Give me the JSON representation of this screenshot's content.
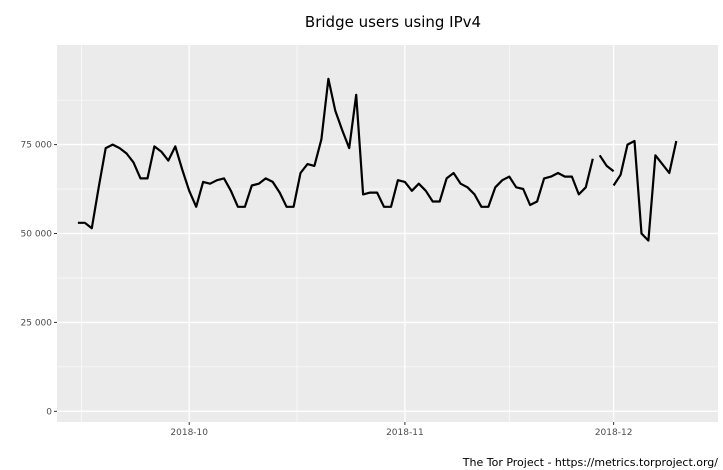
{
  "chart_data": {
    "type": "line",
    "title": "Bridge users using IPv4",
    "caption": "The Tor Project - https://metrics.torproject.org/",
    "xlabel": "",
    "ylabel": "",
    "xlim": [
      "2018-09-12",
      "2018-12-16"
    ],
    "ylim": [
      -3000,
      103000
    ],
    "y_ticks": [
      0,
      25000,
      50000,
      75000
    ],
    "y_tick_labels": [
      "0",
      "25 000",
      "50 000",
      "75 000"
    ],
    "x_ticks": [
      "2018-10-01",
      "2018-11-01",
      "2018-12-01"
    ],
    "x_tick_labels": [
      "2018-10",
      "2018-11",
      "2018-12"
    ],
    "grid": true,
    "background": "#ebebeb",
    "grid_color": "#ffffff",
    "line_color": "#000000",
    "series": [
      {
        "segments": [
          {
            "x": [
              "2018-09-15",
              "2018-09-16",
              "2018-09-17",
              "2018-09-18",
              "2018-09-19",
              "2018-09-20",
              "2018-09-21",
              "2018-09-22",
              "2018-09-23",
              "2018-09-24",
              "2018-09-25",
              "2018-09-26",
              "2018-09-27",
              "2018-09-28",
              "2018-09-29",
              "2018-09-30",
              "2018-10-01",
              "2018-10-02",
              "2018-10-03",
              "2018-10-04",
              "2018-10-05",
              "2018-10-06",
              "2018-10-07",
              "2018-10-08",
              "2018-10-09",
              "2018-10-10",
              "2018-10-11",
              "2018-10-12",
              "2018-10-13",
              "2018-10-14",
              "2018-10-15",
              "2018-10-16",
              "2018-10-17",
              "2018-10-18",
              "2018-10-19",
              "2018-10-20",
              "2018-10-21",
              "2018-10-22",
              "2018-10-23",
              "2018-10-24",
              "2018-10-25",
              "2018-10-26",
              "2018-10-27",
              "2018-10-28",
              "2018-10-29",
              "2018-10-30",
              "2018-10-31",
              "2018-11-01",
              "2018-11-02",
              "2018-11-03",
              "2018-11-04",
              "2018-11-05",
              "2018-11-06",
              "2018-11-07",
              "2018-11-08",
              "2018-11-09",
              "2018-11-10",
              "2018-11-11",
              "2018-11-12",
              "2018-11-13",
              "2018-11-14",
              "2018-11-15",
              "2018-11-16",
              "2018-11-17",
              "2018-11-18",
              "2018-11-19",
              "2018-11-20",
              "2018-11-21",
              "2018-11-22",
              "2018-11-23",
              "2018-11-24",
              "2018-11-25",
              "2018-11-26",
              "2018-11-27",
              "2018-11-28"
            ],
            "y": [
              53000,
              53000,
              51500,
              63000,
              74000,
              75000,
              74000,
              72500,
              70000,
              65500,
              65500,
              74500,
              73000,
              70500,
              74500,
              68000,
              62000,
              57500,
              64500,
              64000,
              65000,
              65500,
              62000,
              57500,
              57500,
              63500,
              64000,
              65500,
              64500,
              61500,
              57500,
              57500,
              67000,
              69500,
              69000,
              76500,
              93500,
              84500,
              79000,
              74000,
              89000,
              61000,
              61500,
              61500,
              57500,
              57500,
              65000,
              64500,
              62000,
              64000,
              62000,
              59000,
              59000,
              65500,
              67000,
              64000,
              63000,
              61000,
              57500,
              57500,
              63000,
              65000,
              66000,
              63000,
              62500,
              58000,
              59000,
              65500,
              66000,
              67000,
              66000,
              66000,
              61000,
              63000,
              71000
            ]
          },
          {
            "x": [
              "2018-11-29",
              "2018-11-30",
              "2018-12-01"
            ],
            "y": [
              72000,
              69000,
              67500
            ]
          },
          {
            "x": [
              "2018-12-01",
              "2018-12-02",
              "2018-12-03",
              "2018-12-04",
              "2018-12-05",
              "2018-12-06",
              "2018-12-07",
              "2018-12-08",
              "2018-12-09",
              "2018-12-10"
            ],
            "y": [
              63500,
              66500,
              75000,
              76000,
              50000,
              48000,
              72000,
              69500,
              67000,
              76000
            ]
          }
        ]
      }
    ]
  }
}
